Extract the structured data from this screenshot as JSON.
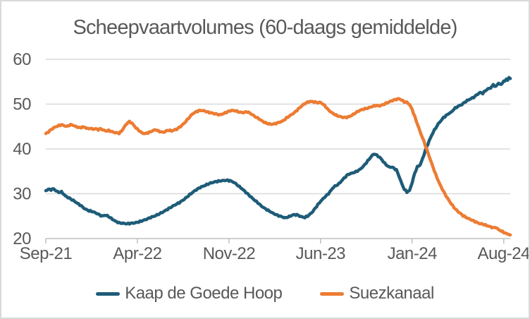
{
  "chart_data": {
    "type": "line",
    "title": "Scheepvaartvolumes (60-daags gemiddelde)",
    "xlabel": "",
    "ylabel": "",
    "x_unit": "months since Sep-2021",
    "xlim": [
      0,
      35.5
    ],
    "ylim": [
      20,
      60
    ],
    "y_ticks": [
      20,
      30,
      40,
      50,
      60
    ],
    "x_ticks": [
      {
        "t": 0,
        "label": "Sep-21"
      },
      {
        "t": 7,
        "label": "Apr-22"
      },
      {
        "t": 14,
        "label": "Nov-22"
      },
      {
        "t": 21,
        "label": "Jun-23"
      },
      {
        "t": 28,
        "label": "Jan-24"
      },
      {
        "t": 35,
        "label": "Aug-24"
      }
    ],
    "grid": "horizontal",
    "legend_position": "bottom",
    "series": [
      {
        "name": "Kaap de Goede Hoop",
        "color": "#1e5c78",
        "points": [
          [
            0,
            30.7
          ],
          [
            0.2,
            31.0
          ],
          [
            0.4,
            30.9
          ],
          [
            0.6,
            31.1
          ],
          [
            0.8,
            30.6
          ],
          [
            1.0,
            30.3
          ],
          [
            1.2,
            30.4
          ],
          [
            1.5,
            29.5
          ],
          [
            1.8,
            29.0
          ],
          [
            2.1,
            28.5
          ],
          [
            2.4,
            27.9
          ],
          [
            2.7,
            27.3
          ],
          [
            3.0,
            26.6
          ],
          [
            3.3,
            26.2
          ],
          [
            3.6,
            26.0
          ],
          [
            3.9,
            25.6
          ],
          [
            4.1,
            25.3
          ],
          [
            4.3,
            25.0
          ],
          [
            4.5,
            25.2
          ],
          [
            4.7,
            25.1
          ],
          [
            5.0,
            24.5
          ],
          [
            5.3,
            23.9
          ],
          [
            5.6,
            23.5
          ],
          [
            5.9,
            23.4
          ],
          [
            6.2,
            23.3
          ],
          [
            6.5,
            23.4
          ],
          [
            6.8,
            23.5
          ],
          [
            7.1,
            23.7
          ],
          [
            7.4,
            24.0
          ],
          [
            7.7,
            24.3
          ],
          [
            8.0,
            24.7
          ],
          [
            8.3,
            25.0
          ],
          [
            8.6,
            25.4
          ],
          [
            9.0,
            26.0
          ],
          [
            9.4,
            26.7
          ],
          [
            9.8,
            27.4
          ],
          [
            10.2,
            28.0
          ],
          [
            10.6,
            28.8
          ],
          [
            11.0,
            29.8
          ],
          [
            11.4,
            30.7
          ],
          [
            11.8,
            31.4
          ],
          [
            12.2,
            31.9
          ],
          [
            12.6,
            32.4
          ],
          [
            13.0,
            32.7
          ],
          [
            13.4,
            32.9
          ],
          [
            13.8,
            33.0
          ],
          [
            14.1,
            32.9
          ],
          [
            14.4,
            32.5
          ],
          [
            14.7,
            31.8
          ],
          [
            15.0,
            31.1
          ],
          [
            15.3,
            30.3
          ],
          [
            15.6,
            29.5
          ],
          [
            15.9,
            28.7
          ],
          [
            16.2,
            28.0
          ],
          [
            16.5,
            27.2
          ],
          [
            16.8,
            26.6
          ],
          [
            17.1,
            26.1
          ],
          [
            17.4,
            25.6
          ],
          [
            17.7,
            25.2
          ],
          [
            18.0,
            24.9
          ],
          [
            18.3,
            24.6
          ],
          [
            18.6,
            24.9
          ],
          [
            18.9,
            25.3
          ],
          [
            19.2,
            25.3
          ],
          [
            19.5,
            24.9
          ],
          [
            19.8,
            24.7
          ],
          [
            20.1,
            25.2
          ],
          [
            20.4,
            26.0
          ],
          [
            20.7,
            27.2
          ],
          [
            21.0,
            28.3
          ],
          [
            21.3,
            29.2
          ],
          [
            21.6,
            30.0
          ],
          [
            22.0,
            31.5
          ],
          [
            22.4,
            32.2
          ],
          [
            22.8,
            33.5
          ],
          [
            23.1,
            34.3
          ],
          [
            23.4,
            34.6
          ],
          [
            23.7,
            34.9
          ],
          [
            24.0,
            35.4
          ],
          [
            24.3,
            36.2
          ],
          [
            24.6,
            37.3
          ],
          [
            24.9,
            38.4
          ],
          [
            25.1,
            38.9
          ],
          [
            25.3,
            38.6
          ],
          [
            25.6,
            37.9
          ],
          [
            25.9,
            36.8
          ],
          [
            26.2,
            36.0
          ],
          [
            26.5,
            35.9
          ],
          [
            26.8,
            35.3
          ],
          [
            27.0,
            33.9
          ],
          [
            27.2,
            32.3
          ],
          [
            27.4,
            31.0
          ],
          [
            27.6,
            30.4
          ],
          [
            27.8,
            30.7
          ],
          [
            28.0,
            32.5
          ],
          [
            28.2,
            34.6
          ],
          [
            28.4,
            36.0
          ],
          [
            28.6,
            36.4
          ],
          [
            28.8,
            37.8
          ],
          [
            29.0,
            39.6
          ],
          [
            29.3,
            41.8
          ],
          [
            29.6,
            43.7
          ],
          [
            30.0,
            45.6
          ],
          [
            30.4,
            47.0
          ],
          [
            30.8,
            47.9
          ],
          [
            31.0,
            48.2
          ],
          [
            31.2,
            48.9
          ],
          [
            31.5,
            49.5
          ],
          [
            31.8,
            49.9
          ],
          [
            32.1,
            50.6
          ],
          [
            32.4,
            51.1
          ],
          [
            32.7,
            51.5
          ],
          [
            33.0,
            52.2
          ],
          [
            33.2,
            52.6
          ],
          [
            33.4,
            52.4
          ],
          [
            33.6,
            53.0
          ],
          [
            33.8,
            53.4
          ],
          [
            34.0,
            53.6
          ],
          [
            34.2,
            54.3
          ],
          [
            34.4,
            53.9
          ],
          [
            34.6,
            54.7
          ],
          [
            34.8,
            54.3
          ],
          [
            35.0,
            55.2
          ],
          [
            35.1,
            55.0
          ],
          [
            35.2,
            55.7
          ],
          [
            35.3,
            55.3
          ],
          [
            35.4,
            55.9
          ],
          [
            35.5,
            55.7
          ]
        ]
      },
      {
        "name": "Suezkanaal",
        "color": "#ec7c33",
        "points": [
          [
            0,
            43.4
          ],
          [
            0.2,
            43.8
          ],
          [
            0.4,
            44.3
          ],
          [
            0.6,
            44.7
          ],
          [
            0.8,
            45.0
          ],
          [
            1.0,
            45.2
          ],
          [
            1.2,
            45.4
          ],
          [
            1.4,
            45.2
          ],
          [
            1.6,
            45.0
          ],
          [
            1.8,
            45.3
          ],
          [
            2.0,
            45.4
          ],
          [
            2.2,
            45.1
          ],
          [
            2.4,
            44.9
          ],
          [
            2.6,
            44.7
          ],
          [
            2.8,
            44.9
          ],
          [
            3.0,
            44.8
          ],
          [
            3.2,
            44.5
          ],
          [
            3.4,
            44.6
          ],
          [
            3.6,
            44.4
          ],
          [
            3.8,
            44.5
          ],
          [
            4.0,
            44.3
          ],
          [
            4.2,
            44.5
          ],
          [
            4.4,
            44.2
          ],
          [
            4.6,
            44.0
          ],
          [
            4.8,
            44.1
          ],
          [
            5.0,
            43.9
          ],
          [
            5.2,
            43.7
          ],
          [
            5.4,
            43.6
          ],
          [
            5.6,
            43.5
          ],
          [
            5.8,
            44.0
          ],
          [
            6.0,
            44.9
          ],
          [
            6.2,
            45.7
          ],
          [
            6.4,
            46.1
          ],
          [
            6.6,
            45.7
          ],
          [
            6.8,
            45.0
          ],
          [
            7.0,
            44.4
          ],
          [
            7.2,
            43.9
          ],
          [
            7.4,
            43.5
          ],
          [
            7.6,
            43.4
          ],
          [
            7.8,
            43.6
          ],
          [
            8.0,
            43.8
          ],
          [
            8.2,
            44.1
          ],
          [
            8.4,
            44.3
          ],
          [
            8.6,
            44.0
          ],
          [
            8.8,
            43.8
          ],
          [
            9.0,
            43.7
          ],
          [
            9.2,
            44.0
          ],
          [
            9.4,
            44.2
          ],
          [
            9.6,
            44.0
          ],
          [
            9.8,
            44.2
          ],
          [
            10.0,
            44.4
          ],
          [
            10.3,
            45.0
          ],
          [
            10.6,
            45.8
          ],
          [
            10.9,
            46.8
          ],
          [
            11.2,
            47.8
          ],
          [
            11.5,
            48.3
          ],
          [
            11.8,
            48.6
          ],
          [
            12.1,
            48.5
          ],
          [
            12.4,
            48.2
          ],
          [
            12.7,
            48.0
          ],
          [
            13.0,
            47.8
          ],
          [
            13.3,
            47.6
          ],
          [
            13.6,
            47.9
          ],
          [
            13.9,
            48.3
          ],
          [
            14.2,
            48.6
          ],
          [
            14.5,
            48.5
          ],
          [
            14.8,
            48.2
          ],
          [
            15.1,
            48.1
          ],
          [
            15.4,
            48.3
          ],
          [
            15.7,
            47.8
          ],
          [
            16.0,
            47.2
          ],
          [
            16.3,
            46.7
          ],
          [
            16.6,
            46.1
          ],
          [
            16.9,
            45.7
          ],
          [
            17.2,
            45.5
          ],
          [
            17.5,
            45.6
          ],
          [
            17.8,
            45.9
          ],
          [
            18.1,
            46.2
          ],
          [
            18.4,
            46.9
          ],
          [
            18.7,
            47.5
          ],
          [
            19.0,
            48.1
          ],
          [
            19.3,
            48.9
          ],
          [
            19.6,
            49.7
          ],
          [
            19.9,
            50.3
          ],
          [
            20.2,
            50.6
          ],
          [
            20.5,
            50.5
          ],
          [
            20.8,
            50.3
          ],
          [
            21.0,
            50.4
          ],
          [
            21.3,
            49.7
          ],
          [
            21.6,
            48.7
          ],
          [
            21.9,
            48.0
          ],
          [
            22.2,
            47.5
          ],
          [
            22.5,
            47.2
          ],
          [
            22.8,
            47.0
          ],
          [
            23.1,
            47.1
          ],
          [
            23.4,
            47.5
          ],
          [
            23.7,
            48.1
          ],
          [
            24.0,
            48.6
          ],
          [
            24.3,
            48.9
          ],
          [
            24.6,
            49.1
          ],
          [
            24.9,
            49.4
          ],
          [
            25.2,
            49.7
          ],
          [
            25.5,
            49.6
          ],
          [
            25.8,
            49.9
          ],
          [
            26.1,
            50.3
          ],
          [
            26.4,
            50.7
          ],
          [
            26.7,
            51.0
          ],
          [
            27.0,
            51.2
          ],
          [
            27.2,
            50.9
          ],
          [
            27.4,
            50.5
          ],
          [
            27.6,
            50.4
          ],
          [
            27.8,
            49.9
          ],
          [
            28.0,
            48.8
          ],
          [
            28.3,
            46.4
          ],
          [
            28.6,
            43.9
          ],
          [
            28.9,
            41.7
          ],
          [
            29.2,
            39.2
          ],
          [
            29.5,
            36.7
          ],
          [
            29.8,
            34.3
          ],
          [
            30.1,
            32.2
          ],
          [
            30.4,
            30.5
          ],
          [
            30.7,
            29.0
          ],
          [
            31.0,
            27.7
          ],
          [
            31.3,
            26.6
          ],
          [
            31.6,
            25.8
          ],
          [
            31.9,
            25.1
          ],
          [
            32.2,
            24.6
          ],
          [
            32.5,
            24.2
          ],
          [
            32.8,
            23.8
          ],
          [
            33.1,
            23.4
          ],
          [
            33.4,
            23.2
          ],
          [
            33.7,
            22.9
          ],
          [
            34.0,
            22.6
          ],
          [
            34.2,
            22.4
          ],
          [
            34.4,
            22.5
          ],
          [
            34.6,
            22.0
          ],
          [
            34.8,
            21.7
          ],
          [
            35.0,
            21.4
          ],
          [
            35.2,
            21.1
          ],
          [
            35.35,
            20.9
          ],
          [
            35.5,
            20.8
          ]
        ]
      }
    ]
  },
  "colors": {
    "background": "#ffffff",
    "border": "#d9d9d9",
    "gridline": "#d9d9d9",
    "axis_line": "#bfbfbf",
    "title_text": "#595959",
    "axis_text": "#595959",
    "legend_text": "#595959",
    "series_kaap": "#1e5c78",
    "series_suez": "#ec7c33"
  }
}
